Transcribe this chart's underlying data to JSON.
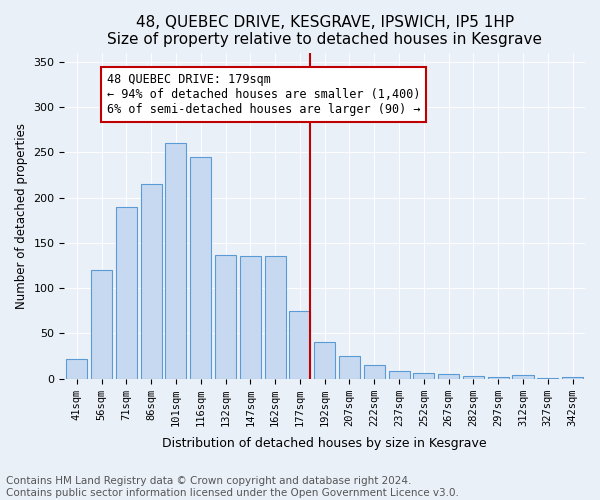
{
  "title": "48, QUEBEC DRIVE, KESGRAVE, IPSWICH, IP5 1HP",
  "subtitle": "Size of property relative to detached houses in Kesgrave",
  "xlabel": "Distribution of detached houses by size in Kesgrave",
  "ylabel": "Number of detached properties",
  "categories": [
    "41sqm",
    "56sqm",
    "71sqm",
    "86sqm",
    "101sqm",
    "116sqm",
    "132sqm",
    "147sqm",
    "162sqm",
    "177sqm",
    "192sqm",
    "207sqm",
    "222sqm",
    "237sqm",
    "252sqm",
    "267sqm",
    "282sqm",
    "297sqm",
    "312sqm",
    "327sqm",
    "342sqm"
  ],
  "values": [
    22,
    120,
    190,
    215,
    260,
    245,
    137,
    136,
    136,
    75,
    40,
    25,
    15,
    9,
    6,
    5,
    3,
    2,
    4,
    1,
    2
  ],
  "bar_color": "#c6d9f0",
  "bar_edge_color": "#5b9bd5",
  "vline_color": "#c00000",
  "vline_x": 9.425,
  "annotation_text": "48 QUEBEC DRIVE: 179sqm\n← 94% of detached houses are smaller (1,400)\n6% of semi-detached houses are larger (90) →",
  "annotation_box_color": "#c00000",
  "ylim": [
    0,
    360
  ],
  "yticks": [
    0,
    50,
    100,
    150,
    200,
    250,
    300,
    350
  ],
  "bg_color": "#eaf0f8",
  "plot_bg_color": "#eaf0f8",
  "footer_text": "Contains HM Land Registry data © Crown copyright and database right 2024.\nContains public sector information licensed under the Open Government Licence v3.0.",
  "title_fontsize": 11,
  "annotation_fontsize": 8.5,
  "footer_fontsize": 7.5
}
